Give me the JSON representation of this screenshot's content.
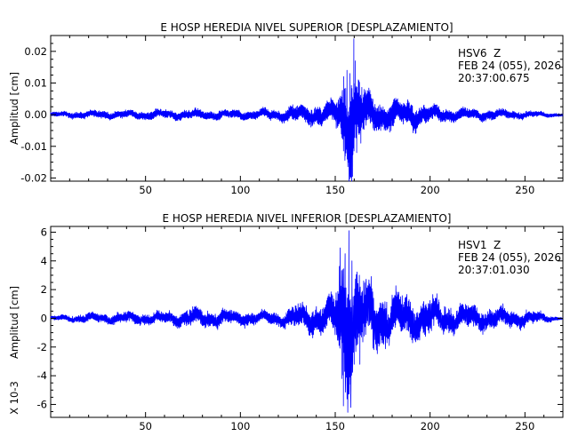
{
  "chart_data": [
    {
      "type": "line",
      "title": "E HOSP HEREDIA NIVEL SUPERIOR [DESPLAZAMIENTO]",
      "ylabel": "Amplitud [cm]",
      "xlim": [
        0,
        270
      ],
      "ylim": [
        -0.021,
        0.025
      ],
      "xticks": [
        50,
        100,
        150,
        200,
        250
      ],
      "xtick_labels": [
        "50",
        "100",
        "150",
        "200",
        "250"
      ],
      "yticks": [
        -0.02,
        -0.01,
        0.0,
        0.01,
        0.02
      ],
      "ytick_labels": [
        "-0.02",
        "-0.01",
        "0.00",
        "0.01",
        "0.02"
      ],
      "station": "HSV6",
      "component": "Z",
      "date": "FEB 24 (055), 2026",
      "time": "20:37:00.675",
      "color": "#0000ff",
      "scale_note": "",
      "envelope": {
        "x": [
          0,
          20,
          60,
          100,
          120,
          130,
          140,
          148,
          152,
          155,
          157,
          158.5,
          160,
          162,
          165,
          170,
          175,
          180,
          185,
          190,
          195,
          200,
          210,
          220,
          240,
          255,
          270
        ],
        "amp": [
          0.0008,
          0.0012,
          0.0015,
          0.0015,
          0.0018,
          0.0028,
          0.0032,
          0.0038,
          0.006,
          0.013,
          0.015,
          0.019,
          0.012,
          0.01,
          0.008,
          0.006,
          0.004,
          0.005,
          0.004,
          0.0045,
          0.0035,
          0.0028,
          0.0022,
          0.0018,
          0.0015,
          0.001,
          0.0005
        ]
      },
      "peaks": [
        {
          "x": 154.5,
          "y": 0.012
        },
        {
          "x": 155.3,
          "y": -0.013
        },
        {
          "x": 156.2,
          "y": 0.014
        },
        {
          "x": 157.0,
          "y": -0.015
        },
        {
          "x": 157.8,
          "y": 0.013
        },
        {
          "x": 158.6,
          "y": -0.018
        },
        {
          "x": 159.2,
          "y": -0.0195
        },
        {
          "x": 159.8,
          "y": 0.024
        },
        {
          "x": 160.5,
          "y": 0.017
        },
        {
          "x": 161.3,
          "y": -0.012
        },
        {
          "x": 162.2,
          "y": 0.011
        },
        {
          "x": 163.5,
          "y": -0.009
        }
      ]
    },
    {
      "type": "line",
      "title": "E HOSP HEREDIA NIVEL INFERIOR [DESPLAZAMIENTO]",
      "ylabel": "Amplitud [cm]",
      "xlim": [
        0,
        270
      ],
      "ylim": [
        -6.9,
        6.4
      ],
      "xticks": [
        50,
        100,
        150,
        200,
        250
      ],
      "xtick_labels": [
        "50",
        "100",
        "150",
        "200",
        "250"
      ],
      "yticks": [
        -6,
        -4,
        -2,
        0,
        2,
        4,
        6
      ],
      "ytick_labels": [
        "-6",
        "-4",
        "-2",
        "0",
        "2",
        "4",
        "6"
      ],
      "station": "HSV1",
      "component": "Z",
      "date": "FEB 24 (055), 2026",
      "time": "20:37:01.030",
      "color": "#0000ff",
      "scale_note": "X 10-3",
      "envelope": {
        "x": [
          0,
          10,
          30,
          60,
          75,
          100,
          120,
          130,
          140,
          150,
          152,
          154,
          156,
          158,
          160,
          165,
          170,
          180,
          190,
          200,
          210,
          220,
          240,
          255,
          265,
          270
        ],
        "amp": [
          0.15,
          0.25,
          0.4,
          0.45,
          0.7,
          0.5,
          0.45,
          0.9,
          1.1,
          1.5,
          3.5,
          5.0,
          5.5,
          5.0,
          3.5,
          2.5,
          2.2,
          1.8,
          1.5,
          1.3,
          1.0,
          0.9,
          0.7,
          0.5,
          0.15,
          0.1
        ]
      },
      "peaks": [
        {
          "x": 152.6,
          "y": 4.9
        },
        {
          "x": 153.4,
          "y": -4.2
        },
        {
          "x": 154.3,
          "y": -6.1
        },
        {
          "x": 155.2,
          "y": 4.5
        },
        {
          "x": 156.2,
          "y": -4.6
        },
        {
          "x": 157.2,
          "y": 6.1
        },
        {
          "x": 158.0,
          "y": -4.6
        },
        {
          "x": 158.8,
          "y": 4.0
        },
        {
          "x": 160.0,
          "y": -3.2
        },
        {
          "x": 161.5,
          "y": 2.8
        },
        {
          "x": 163.0,
          "y": -3.2
        },
        {
          "x": 165.0,
          "y": 2.6
        }
      ]
    }
  ]
}
